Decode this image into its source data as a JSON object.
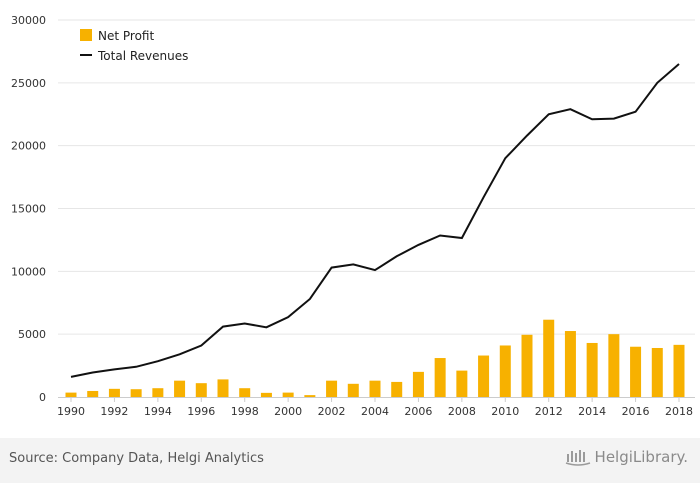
{
  "chart_data": {
    "type": "bar+line",
    "x": [
      1990,
      1991,
      1992,
      1993,
      1994,
      1995,
      1996,
      1997,
      1998,
      1999,
      2000,
      2001,
      2002,
      2003,
      2004,
      2005,
      2006,
      2007,
      2008,
      2009,
      2010,
      2011,
      2012,
      2013,
      2014,
      2015,
      2016,
      2017,
      2018
    ],
    "x_tick_labels": [
      "1990",
      "1992",
      "1994",
      "1996",
      "1998",
      "2000",
      "2002",
      "2004",
      "2006",
      "2008",
      "2010",
      "2012",
      "2014",
      "2016",
      "2018"
    ],
    "series": [
      {
        "name": "Net Profit",
        "kind": "bar",
        "color": "#f7b100",
        "values": [
          350,
          480,
          650,
          620,
          700,
          1300,
          1100,
          1400,
          700,
          330,
          350,
          150,
          1300,
          1050,
          1300,
          1200,
          2000,
          3100,
          2100,
          3300,
          4100,
          4950,
          6150,
          5250,
          4300,
          5000,
          4000,
          3900,
          4150
        ]
      },
      {
        "name": "Total Revenues",
        "kind": "line",
        "color": "#111111",
        "values": [
          1600,
          1950,
          2200,
          2400,
          2850,
          3400,
          4100,
          5600,
          5850,
          5550,
          6350,
          7800,
          10300,
          10550,
          10100,
          11200,
          12100,
          12850,
          12650,
          15900,
          19000,
          20800,
          22500,
          22900,
          22100,
          22150,
          22700,
          25000,
          26500
        ]
      }
    ],
    "ylim": [
      0,
      30000
    ],
    "yticks": [
      0,
      5000,
      10000,
      15000,
      20000,
      25000,
      30000
    ],
    "ytick_labels": [
      "0",
      "5000",
      "10000",
      "15000",
      "20000",
      "25000",
      "30000"
    ],
    "grid": true,
    "legend_position": "top-left",
    "xlabel": "",
    "ylabel": "",
    "title": ""
  },
  "footer": {
    "source": "Source: Company Data, Helgi Analytics",
    "brand": "HelgiLibrary."
  }
}
